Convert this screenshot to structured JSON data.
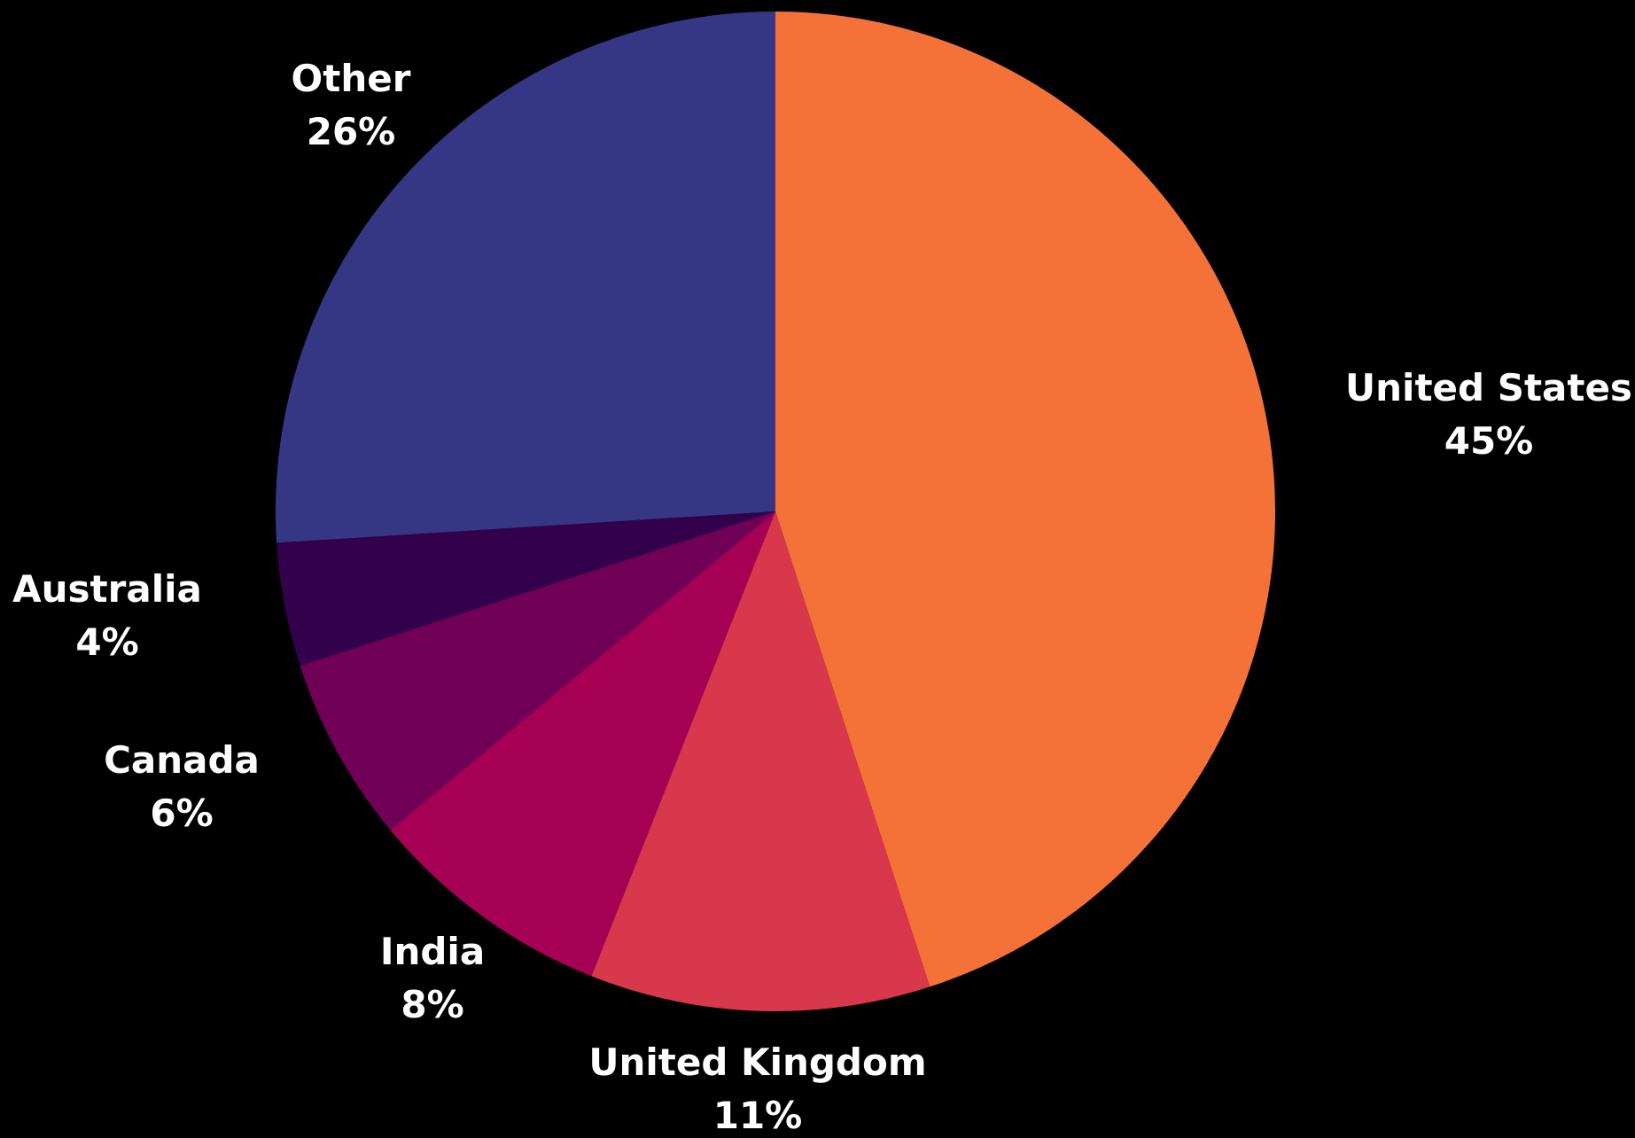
{
  "chart_data": {
    "type": "pie",
    "title": "",
    "start_angle_deg": 0,
    "direction": "clockwise",
    "background": "#000000",
    "label_color": "#ffffff",
    "slices": [
      {
        "label": "United States",
        "value": 45,
        "value_label": "45%",
        "color": "#f47238"
      },
      {
        "label": "United Kingdom",
        "value": 11,
        "value_label": "11%",
        "color": "#d8384c"
      },
      {
        "label": "India",
        "value": 8,
        "value_label": "8%",
        "color": "#a60055"
      },
      {
        "label": "Canada",
        "value": 6,
        "value_label": "6%",
        "color": "#700056"
      },
      {
        "label": "Australia",
        "value": 4,
        "value_label": "4%",
        "color": "#33004c"
      },
      {
        "label": "Other",
        "value": 26,
        "value_label": "26%",
        "color": "#363784"
      }
    ]
  }
}
